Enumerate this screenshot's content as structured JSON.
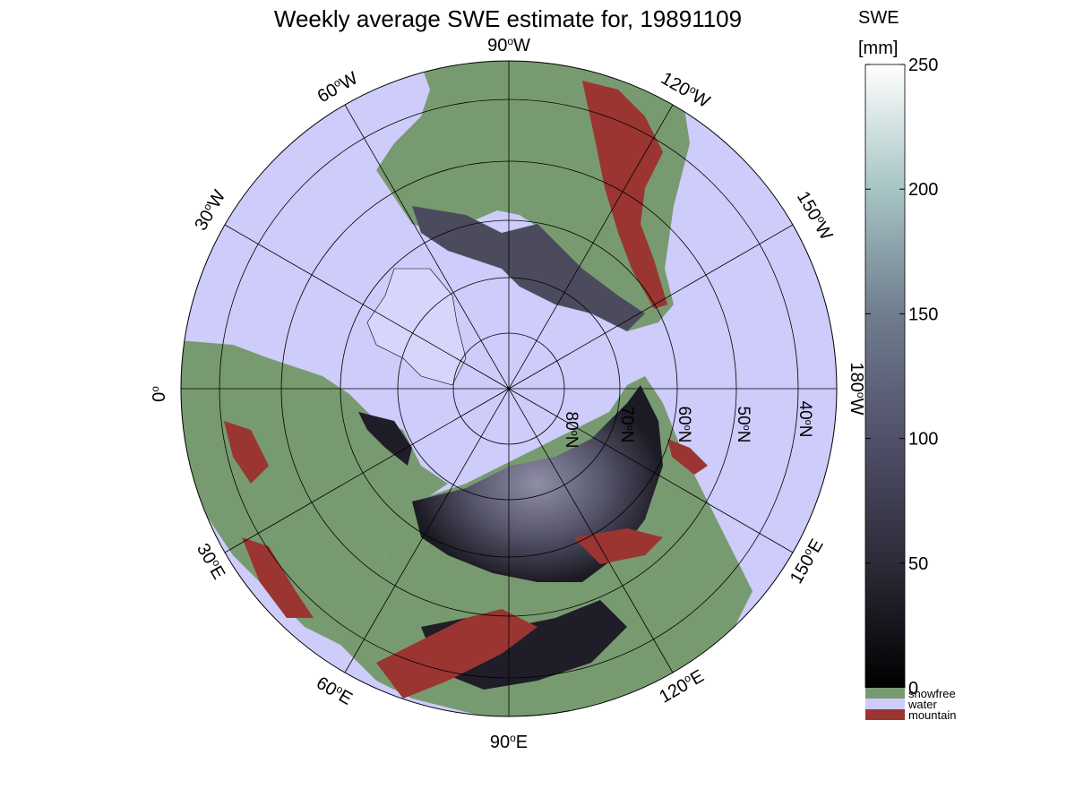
{
  "title": "Weekly average SWE estimate for, 19891109",
  "colorbar": {
    "label_line1": "SWE",
    "label_line2": "[mm]",
    "ticks": [
      "250",
      "200",
      "150",
      "100",
      "50",
      "0"
    ],
    "tick_values": [
      250,
      200,
      150,
      100,
      50,
      0
    ],
    "range": [
      0,
      250
    ],
    "categories": [
      {
        "label": "snowfree",
        "color": "#789a70"
      },
      {
        "label": "water",
        "color": "#cdccfa"
      },
      {
        "label": "mountain",
        "color": "#9a3532"
      }
    ]
  },
  "map": {
    "projection": "north polar stereographic",
    "meridian_labels": {
      "lon_90W": "90",
      "lon_60W": "60",
      "lon_120W": "120",
      "lon_30W": "30",
      "lon_150W": "150",
      "lon_0": "0",
      "lon_180W": "180",
      "lon_30E": "30",
      "lon_150E": "150",
      "lon_60E": "60",
      "lon_120E": "120",
      "lon_90E": "90",
      "deg": "o",
      "W": "W",
      "E": "E"
    },
    "latitude_labels": [
      "80",
      "70",
      "60",
      "50",
      "40"
    ],
    "latitude_values": [
      80,
      70,
      60,
      50,
      40
    ],
    "lat_suffix": "N",
    "colors": {
      "water": "#cdccfa",
      "snowfree": "#789a70",
      "mountain": "#9a3532",
      "snow_dark": "#1f1e28",
      "snow_mid": "#4c4b5e",
      "snow_light": "#6e6d82"
    }
  }
}
